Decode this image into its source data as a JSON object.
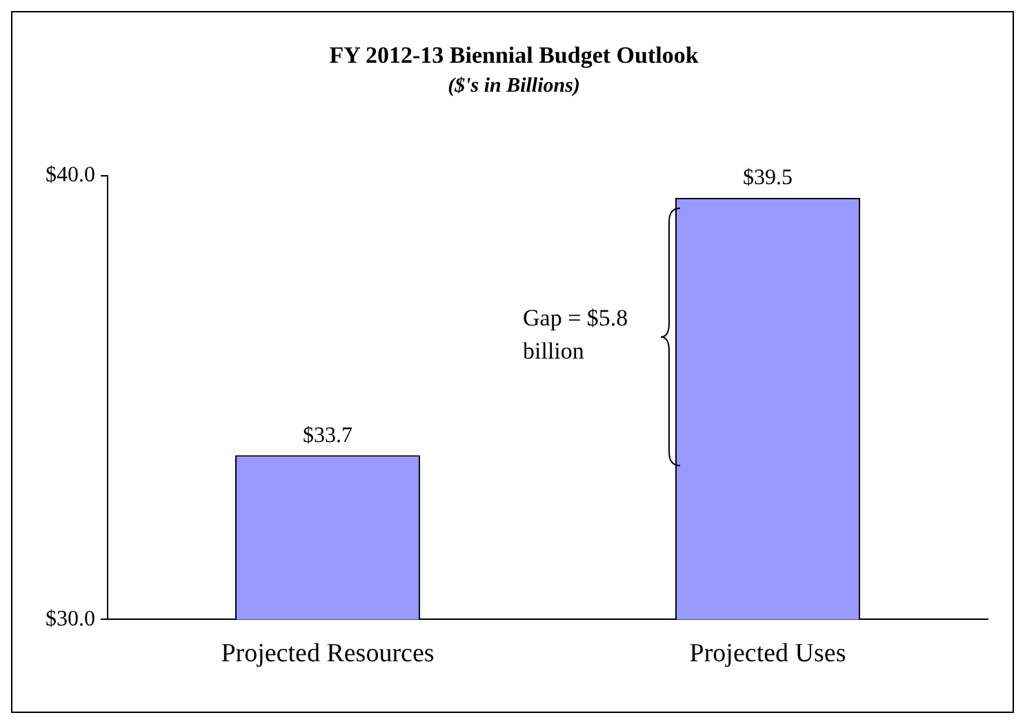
{
  "chart_data": {
    "type": "bar",
    "title": "FY 2012-13 Biennial Budget Outlook",
    "subtitle": "($'s in Billions)",
    "categories": [
      "Projected Resources",
      "Projected Uses"
    ],
    "values": [
      33.7,
      39.5
    ],
    "color": "#9999ff",
    "value_labels": [
      "$33.7",
      "$39.5"
    ],
    "ylim": [
      30,
      40
    ],
    "yticks": [
      {
        "value": 30,
        "label": "$30.0"
      },
      {
        "value": 40,
        "label": "$40.0"
      }
    ],
    "grid": false,
    "legend": false,
    "annotations": [
      "Gap = $5.8 billion"
    ]
  }
}
